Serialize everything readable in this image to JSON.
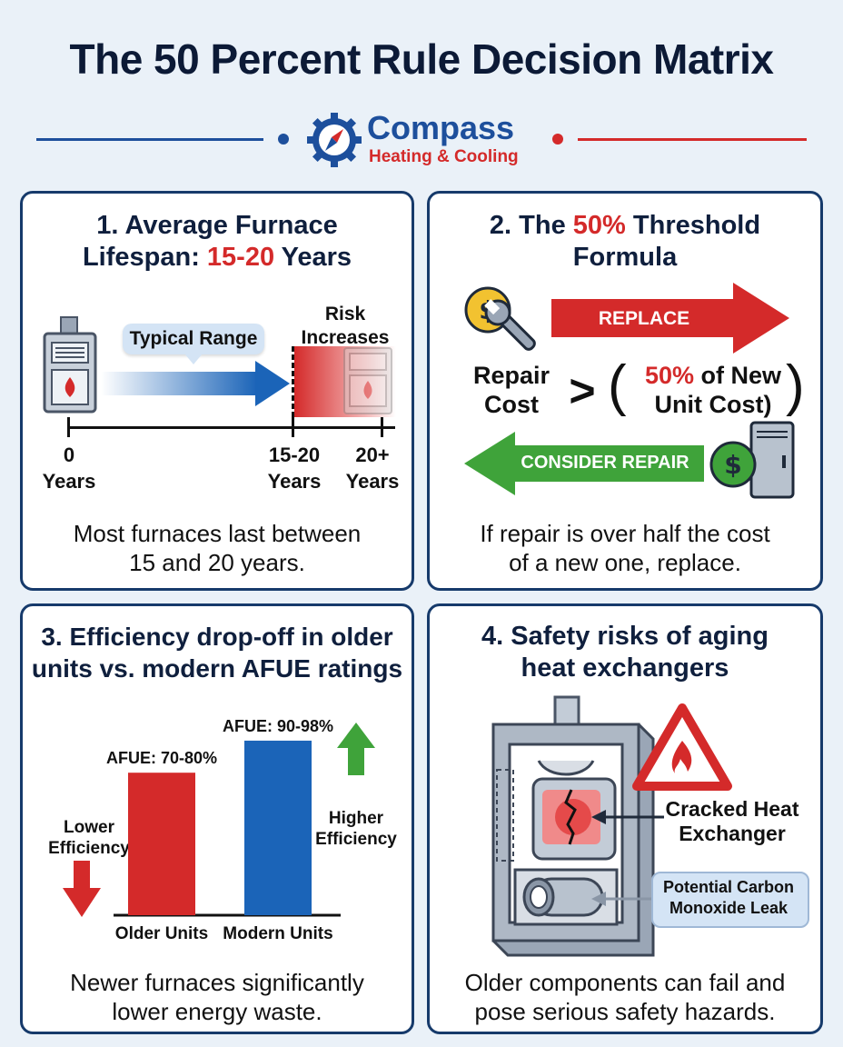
{
  "header": {
    "title": "The 50 Percent Rule Decision Matrix",
    "brand_name": "Compass",
    "brand_sub": "Heating & Cooling"
  },
  "card1": {
    "title_a": "1. Average Furnace",
    "title_b": "Lifespan: ",
    "title_highlight": "15-20",
    "title_c": " Years",
    "range_label": "Typical Range",
    "risk_label_1": "Risk",
    "risk_label_2": "Increases",
    "ticks": [
      {
        "num": "0",
        "unit": "Years"
      },
      {
        "num": "15-20",
        "unit": "Years"
      },
      {
        "num": "20+",
        "unit": "Years"
      }
    ],
    "caption_1": "Most furnaces last between",
    "caption_2": "15 and 20 years."
  },
  "card2": {
    "title_a": "2. The ",
    "title_highlight": "50%",
    "title_b": " Threshold",
    "title_c": "Formula",
    "replace_label": "REPLACE",
    "repair_label": "CONSIDER REPAIR",
    "lhs_1": "Repair",
    "lhs_2": "Cost",
    "operator": ">",
    "rhs_highlight": "50%",
    "rhs_1": " of New",
    "rhs_2": "Unit Cost)",
    "caption_1": "If repair is over half the cost",
    "caption_2": "of a new one, replace."
  },
  "card3": {
    "title_1": "3. Efficiency drop-off in older",
    "title_2": "units vs. modern AFUE ratings",
    "lower_1": "Lower",
    "lower_2": "Efficiency",
    "higher_1": "Higher",
    "higher_2": "Efficiency",
    "caption_1": "Newer furnaces significantly",
    "caption_2": "lower energy waste."
  },
  "chart_data": {
    "type": "bar",
    "categories": [
      "Older Units",
      "Modern Units"
    ],
    "value_labels": [
      "AFUE: 70-80%",
      "AFUE: 90-98%"
    ],
    "values": [
      [
        70,
        80
      ],
      [
        90,
        98
      ]
    ],
    "colors": [
      "#d42a2a",
      "#1b64b8"
    ]
  },
  "card4": {
    "title_1": "4. Safety risks of aging",
    "title_2": "heat exchangers",
    "crack_1": "Cracked Heat",
    "crack_2": "Exchanger",
    "co_1": "Potential Carbon",
    "co_2": "Monoxide Leak",
    "caption_1": "Older components can fail and",
    "caption_2": "pose serious safety hazards."
  },
  "colors": {
    "navy": "#163a6b",
    "red": "#d42a2a",
    "blue": "#1b64b8",
    "green": "#3fa33a"
  },
  "icons": [
    "compass-gear-logo",
    "furnace-icon",
    "money-wrench-icon",
    "money-furnace-icon",
    "warning-fire-icon"
  ]
}
